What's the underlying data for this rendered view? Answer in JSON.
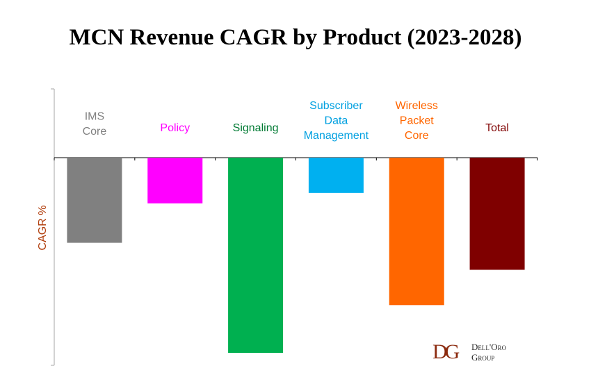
{
  "chart_data": {
    "type": "bar",
    "title": "MCN Revenue CAGR by Product (2023-2028)",
    "xlabel": "",
    "ylabel": "CAGR %",
    "y_tick_labels": "none shown",
    "grid": false,
    "legend": "none",
    "categories": [
      "IMS\nCore",
      "Policy",
      "Signaling",
      "Subscriber\nData\nManagement",
      "Wireless\nPacket\nCore",
      "Total"
    ],
    "series": [
      {
        "values": [
          -41,
          -22,
          -94,
          -17,
          -71,
          -54
        ],
        "colors": [
          "#808080",
          "#ff00ff",
          "#00b050",
          "#00b0f0",
          "#ff6600",
          "#7f0000"
        ]
      }
    ],
    "label_colors": [
      "#808080",
      "#ff00ff",
      "#007a33",
      "#00a0e0",
      "#ff6600",
      "#7f0000"
    ],
    "ylabel_color": "#b03c0a"
  },
  "logo": {
    "mark": "DG",
    "line1": "Dell'Oro",
    "line2": "Group"
  }
}
